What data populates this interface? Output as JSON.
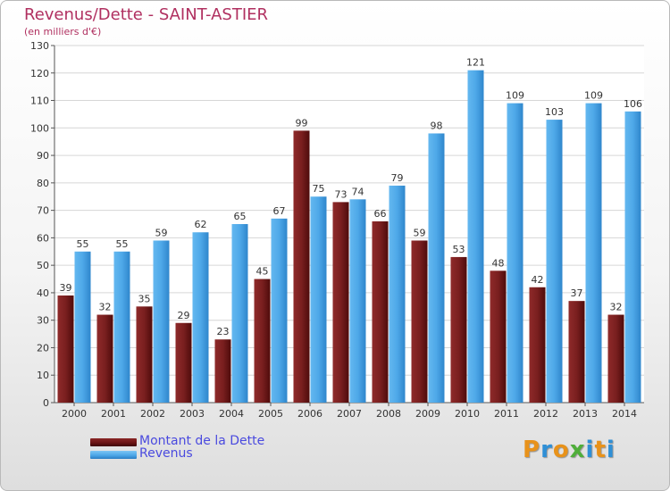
{
  "colors": {
    "title": "#b03060",
    "legend_text": "#4a4adf",
    "debt": "#7a1f1f",
    "revenue": "#4ea8e8"
  },
  "logo": {
    "text": "Proxiti",
    "letter_colors": [
      "#e8921a",
      "#2f8fd6",
      "#e8921a",
      "#4fae3a",
      "#2f8fd6",
      "#e8921a",
      "#2f8fd6"
    ]
  },
  "chart_data": {
    "type": "bar",
    "title": "Revenus/Dette - SAINT-ASTIER",
    "subtitle": "(en milliers d'€)",
    "xlabel": "",
    "ylabel": "",
    "ylim": [
      0,
      130
    ],
    "y_ticks": [
      0,
      10,
      20,
      30,
      40,
      50,
      60,
      70,
      80,
      90,
      100,
      110,
      120,
      130
    ],
    "grid": true,
    "legend_position": "bottom-left",
    "categories": [
      "2000",
      "2001",
      "2002",
      "2003",
      "2004",
      "2005",
      "2006",
      "2007",
      "2008",
      "2009",
      "2010",
      "2011",
      "2012",
      "2013",
      "2014"
    ],
    "series": [
      {
        "name": "Montant de la Dette",
        "color": "#7a1f1f",
        "values": [
          39,
          32,
          35,
          29,
          23,
          45,
          99,
          73,
          66,
          59,
          53,
          48,
          42,
          37,
          32
        ]
      },
      {
        "name": "Revenus",
        "color": "#4ea8e8",
        "values": [
          55,
          55,
          59,
          62,
          65,
          67,
          75,
          74,
          79,
          98,
          121,
          109,
          103,
          109,
          106
        ]
      }
    ]
  }
}
